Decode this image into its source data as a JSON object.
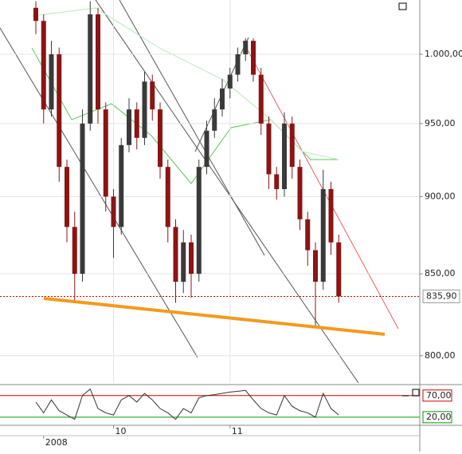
{
  "chart_data": [
    {
      "type": "candlestick",
      "categories": [
        null,
        "2008",
        null,
        null,
        null,
        null,
        null,
        null,
        null,
        null,
        "10",
        null,
        null,
        null,
        null,
        null,
        null,
        null,
        null,
        null,
        null,
        null,
        null,
        null,
        null,
        "11",
        null,
        null,
        null,
        null,
        null,
        null,
        null,
        null,
        null,
        null,
        null,
        null,
        null,
        null
      ],
      "open": [
        1035,
        1025,
        960,
        1000,
        920,
        880,
        850,
        950,
        1030,
        960,
        900,
        880,
        935,
        960,
        940,
        980,
        960,
        920,
        880,
        845,
        870,
        850,
        920,
        945,
        960,
        975,
        985,
        1000,
        1010,
        985,
        950,
        915,
        905,
        950,
        920,
        885,
        865,
        845,
        905,
        870
      ],
      "high": [
        1040,
        1030,
        1010,
        1005,
        925,
        890,
        960,
        1040,
        1035,
        965,
        905,
        940,
        968,
        965,
        987,
        985,
        965,
        925,
        885,
        878,
        875,
        925,
        952,
        968,
        982,
        990,
        1005,
        1012,
        1012,
        990,
        955,
        920,
        958,
        955,
        925,
        890,
        870,
        918,
        910,
        875
      ],
      "low": [
        1015,
        950,
        955,
        910,
        870,
        833,
        845,
        945,
        950,
        890,
        860,
        875,
        930,
        932,
        935,
        952,
        912,
        870,
        832,
        838,
        835,
        845,
        915,
        940,
        955,
        968,
        980,
        995,
        980,
        942,
        905,
        898,
        900,
        912,
        878,
        855,
        818,
        840,
        862,
        832
      ],
      "close": [
        1025,
        960,
        1000,
        920,
        880,
        850,
        950,
        1030,
        960,
        900,
        880,
        935,
        960,
        940,
        980,
        960,
        920,
        880,
        845,
        870,
        850,
        920,
        945,
        960,
        975,
        985,
        1000,
        1010,
        985,
        950,
        915,
        905,
        950,
        920,
        885,
        865,
        845,
        905,
        870,
        835.9
      ],
      "up_color": "#3a3a3a",
      "down_color": "#8b1414",
      "log": true,
      "grid": true,
      "ylim": [
        784,
        1041
      ],
      "yticks": [
        {
          "value": 1000,
          "label": "1.000,00"
        },
        {
          "value": 950,
          "label": "950,00"
        },
        {
          "value": 900,
          "label": "900,00"
        },
        {
          "value": 850,
          "label": "850,00"
        },
        {
          "value": 800,
          "label": "800,00"
        }
      ],
      "last_price": {
        "value": 835.9,
        "label": "835,90",
        "color": "#cc0000"
      }
    },
    {
      "type": "line",
      "values": [
        55,
        30,
        60,
        35,
        25,
        15,
        70,
        85,
        40,
        30,
        25,
        60,
        70,
        55,
        75,
        60,
        40,
        30,
        15,
        40,
        30,
        65,
        70,
        72,
        75,
        78,
        80,
        82,
        60,
        40,
        30,
        25,
        70,
        45,
        35,
        30,
        20,
        75,
        40,
        25
      ],
      "color": "#333333",
      "ylim": [
        5,
        88
      ],
      "yticks": [
        {
          "value": 70,
          "label": "70,00"
        },
        {
          "value": 20,
          "label": "20,00"
        }
      ],
      "level_colors": [
        "#d40000",
        "#009900"
      ]
    }
  ]
}
